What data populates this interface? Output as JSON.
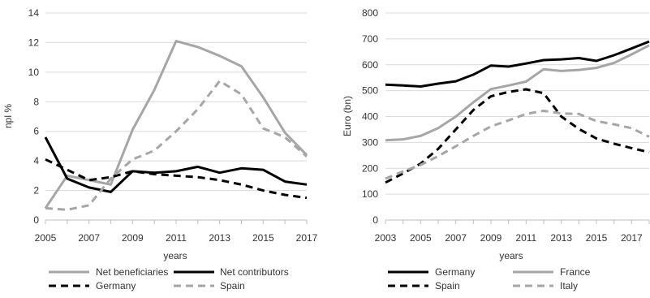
{
  "chart_data": [
    {
      "type": "line",
      "title": "",
      "xlabel": "years",
      "ylabel": "npl %",
      "x": [
        2005,
        2006,
        2007,
        2008,
        2009,
        2010,
        2011,
        2012,
        2013,
        2014,
        2015,
        2016,
        2017
      ],
      "xticks": [
        "2005",
        "2007",
        "2009",
        "2011",
        "2013",
        "2015",
        "2017"
      ],
      "yticks": [
        "0",
        "2",
        "4",
        "6",
        "8",
        "10",
        "12",
        "14"
      ],
      "xlim": [
        2005,
        2017
      ],
      "ylim": [
        0,
        14
      ],
      "grid": true,
      "legend": "bottom",
      "series": [
        {
          "name": "Net beneficiaries",
          "color": "#a6a6a6",
          "dash": "solid",
          "values": [
            0.8,
            3.0,
            2.7,
            2.4,
            6.1,
            8.8,
            12.1,
            11.7,
            11.1,
            10.4,
            8.3,
            5.9,
            4.4
          ]
        },
        {
          "name": "Net contributors",
          "color": "#000000",
          "dash": "solid",
          "values": [
            5.6,
            2.8,
            2.2,
            1.9,
            3.3,
            3.2,
            3.3,
            3.6,
            3.2,
            3.5,
            3.4,
            2.6,
            2.4
          ]
        },
        {
          "name": "Germany",
          "color": "#000000",
          "dash": "dashed",
          "values": [
            4.1,
            3.4,
            2.7,
            2.9,
            3.3,
            3.1,
            3.0,
            2.9,
            2.7,
            2.4,
            2.0,
            1.7,
            1.5
          ]
        },
        {
          "name": "Spain",
          "color": "#a6a6a6",
          "dash": "dashed",
          "values": [
            0.8,
            0.7,
            1.0,
            2.8,
            4.1,
            4.7,
            6.0,
            7.5,
            9.4,
            8.5,
            6.2,
            5.6,
            4.3
          ]
        }
      ]
    },
    {
      "type": "line",
      "title": "",
      "xlabel": "years",
      "ylabel": "Euro (bn)",
      "x": [
        2003,
        2004,
        2005,
        2006,
        2007,
        2008,
        2009,
        2010,
        2011,
        2012,
        2013,
        2014,
        2015,
        2016,
        2017,
        2018
      ],
      "xticks": [
        "2003",
        "2005",
        "2007",
        "2009",
        "2011",
        "2013",
        "2015",
        "2017"
      ],
      "yticks": [
        "0",
        "100",
        "200",
        "300",
        "400",
        "500",
        "600",
        "700",
        "800"
      ],
      "xlim": [
        2003,
        2018
      ],
      "ylim": [
        0,
        800
      ],
      "grid": true,
      "legend": "bottom",
      "series": [
        {
          "name": "Germany",
          "color": "#000000",
          "dash": "solid",
          "values": [
            523,
            520,
            516,
            527,
            536,
            562,
            597,
            593,
            605,
            618,
            621,
            626,
            615,
            637,
            663,
            690
          ]
        },
        {
          "name": "France",
          "color": "#a6a6a6",
          "dash": "solid",
          "values": [
            308,
            312,
            325,
            355,
            400,
            455,
            506,
            520,
            535,
            583,
            576,
            580,
            588,
            607,
            640,
            675
          ]
        },
        {
          "name": "Spain",
          "color": "#000000",
          "dash": "dashed",
          "values": [
            145,
            180,
            218,
            275,
            350,
            425,
            478,
            495,
            505,
            490,
            400,
            352,
            315,
            295,
            278,
            262
          ]
        },
        {
          "name": "Italy",
          "color": "#a6a6a6",
          "dash": "dashed",
          "values": [
            160,
            188,
            213,
            247,
            285,
            325,
            362,
            385,
            410,
            422,
            412,
            410,
            382,
            370,
            355,
            322
          ]
        }
      ]
    }
  ]
}
